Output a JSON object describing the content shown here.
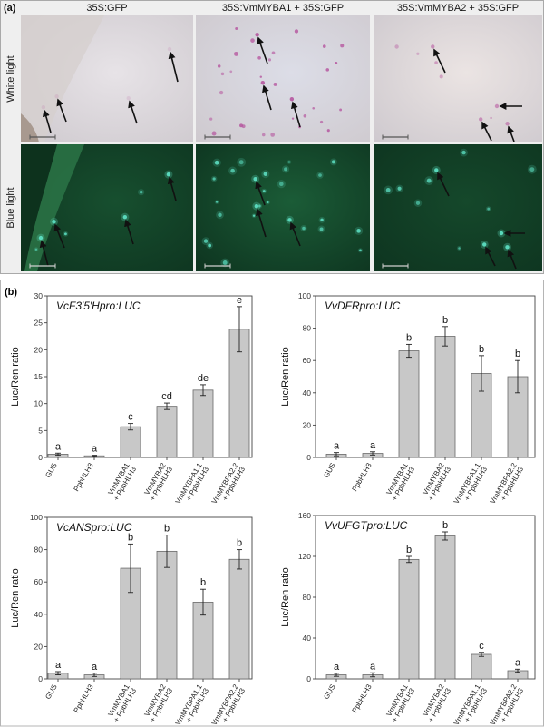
{
  "figure": {
    "panel_a": {
      "label": "(a)",
      "columns": [
        "35S:GFP",
        "35S:VmMYBA1 + 35S:GFP",
        "35S:VmMYBA2 + 35S:GFP"
      ],
      "rows": [
        "White light",
        "Blue light"
      ]
    },
    "panel_b": {
      "label": "(b)"
    },
    "colors": {
      "bar_fill": "#c8c8c8",
      "bar_stroke": "#6a6a6a",
      "white_light_background": "#e6e2e6",
      "blue_light_background": "#174f2f",
      "white_light_spot": "#b4509c",
      "blue_light_spot": "#5fe3c6",
      "arrow": "#111111"
    }
  },
  "chart_data": [
    {
      "type": "bar",
      "title": "VcF3′5′Hpro:LUC",
      "ylabel": "Luc/Ren ratio",
      "ylim": [
        0,
        30
      ],
      "yticks": [
        0,
        5,
        10,
        15,
        20,
        25,
        30
      ],
      "categories": [
        [
          "GUS"
        ],
        [
          "PpbHLH3"
        ],
        [
          "VmMYBA1",
          "+ PpbHLH3"
        ],
        [
          "VmMYBA2",
          "+ PpbHLH3"
        ],
        [
          "VmMYBPA1.1",
          "+ PpbHLH3"
        ],
        [
          "VmMYBPA2.2",
          "+ PpbHLH3"
        ]
      ],
      "values": [
        0.6,
        0.3,
        5.7,
        9.5,
        12.5,
        23.8
      ],
      "errors": [
        0.2,
        0.1,
        0.6,
        0.6,
        1.0,
        4.2
      ],
      "letters": [
        "a",
        "a",
        "c",
        "cd",
        "de",
        "e"
      ],
      "grid": false
    },
    {
      "type": "bar",
      "title": "VvDFRpro:LUC",
      "ylabel": "Luc/Ren ratio",
      "ylim": [
        0,
        100
      ],
      "yticks": [
        0,
        20,
        40,
        60,
        80,
        100
      ],
      "categories": [
        [
          "GUS"
        ],
        [
          "PpbHLH3"
        ],
        [
          "VmMYBA1",
          "+ PpbHLH3"
        ],
        [
          "VmMYBA2",
          "+ PpbHLH3"
        ],
        [
          "VmMYBPA1.1",
          "+ PpbHLH3"
        ],
        [
          "VmMYBPA2.2",
          "+ PpbHLH3"
        ]
      ],
      "values": [
        2,
        2.5,
        66,
        75,
        52,
        50
      ],
      "errors": [
        1,
        1,
        4,
        6,
        11,
        10
      ],
      "letters": [
        "a",
        "a",
        "b",
        "b",
        "b",
        "b"
      ],
      "grid": false
    },
    {
      "type": "bar",
      "title": "VcANSpro:LUC",
      "ylabel": "Luc/Ren ratio",
      "ylim": [
        0,
        100
      ],
      "yticks": [
        0,
        20,
        40,
        60,
        80,
        100
      ],
      "categories": [
        [
          "GUS"
        ],
        [
          "PpbHLH3"
        ],
        [
          "VmMYBA1",
          "+ PpbHLH3"
        ],
        [
          "VmMYBA2",
          "+ PpbHLH3"
        ],
        [
          "VmMYBPA1.1",
          "+ PpbHLH3"
        ],
        [
          "VmMYBPA2.2",
          "+ PpbHLH3"
        ]
      ],
      "values": [
        3.5,
        2.5,
        68.5,
        79,
        47.5,
        74
      ],
      "errors": [
        1,
        1,
        15,
        10,
        8,
        6
      ],
      "letters": [
        "a",
        "a",
        "b",
        "b",
        "b",
        "b"
      ],
      "grid": false
    },
    {
      "type": "bar",
      "title": "VvUFGTpro:LUC",
      "ylabel": "Luc/Ren ratio",
      "ylim": [
        0,
        160
      ],
      "yticks": [
        0,
        40,
        80,
        120,
        160
      ],
      "categories": [
        [
          "GUS"
        ],
        [
          "PpbHLH3"
        ],
        [
          "VmMYBA1",
          "+ PpbHLH3"
        ],
        [
          "VmMYBA2",
          "+ PpbHLH3"
        ],
        [
          "VmMYBPA1.1",
          "+ PpbHLH3"
        ],
        [
          "VmMYBPA2.2",
          "+ PpbHLH3"
        ]
      ],
      "values": [
        4,
        4,
        117,
        140,
        24,
        8
      ],
      "errors": [
        1.5,
        2,
        3,
        4,
        2,
        1.5
      ],
      "letters": [
        "a",
        "a",
        "b",
        "b",
        "c",
        "a"
      ],
      "grid": false
    }
  ]
}
